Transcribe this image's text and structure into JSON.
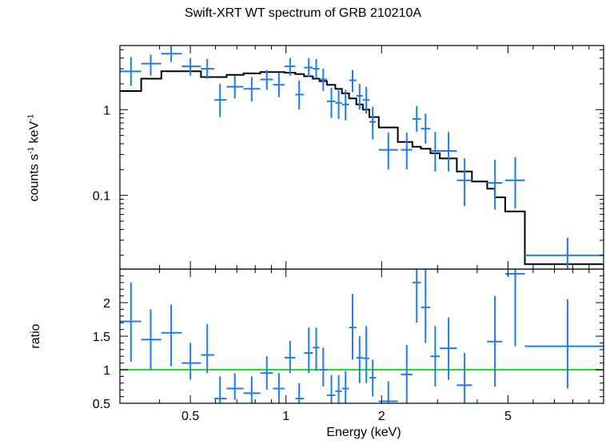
{
  "title": "Swift-XRT WT spectrum of GRB 210210A",
  "xlabel": "Energy (keV)",
  "colors": {
    "data": "#1e7ee6",
    "model": "#000000",
    "unity": "#22dd22",
    "frame": "#000000"
  },
  "chart_data": [
    {
      "type": "scatter",
      "panel": "spectrum",
      "xscale": "log",
      "yscale": "log",
      "xlim": [
        0.3,
        10
      ],
      "ylim": [
        0.0138,
        5.6
      ],
      "ylabel_main": "counts s",
      "ylabel_exp1": "-1",
      "ylabel_mid": " keV",
      "ylabel_exp2": "-1",
      "yticks": [
        {
          "value": 0.1,
          "label": "0.1"
        },
        {
          "value": 1,
          "label": "1"
        }
      ],
      "xticks": [
        {
          "value": 0.5,
          "label": "0.5"
        },
        {
          "value": 1,
          "label": "1"
        },
        {
          "value": 2,
          "label": "2"
        },
        {
          "value": 5,
          "label": "5"
        }
      ],
      "data_points": [
        {
          "x": 0.325,
          "xlo": 0.3,
          "xhi": 0.35,
          "y": 2.8,
          "ylo": 1.9,
          "yhi": 4.1
        },
        {
          "x": 0.375,
          "xlo": 0.35,
          "xhi": 0.405,
          "y": 3.45,
          "ylo": 2.5,
          "yhi": 4.4
        },
        {
          "x": 0.435,
          "xlo": 0.405,
          "xhi": 0.47,
          "y": 4.5,
          "ylo": 3.6,
          "yhi": 5.6
        },
        {
          "x": 0.5,
          "xlo": 0.47,
          "xhi": 0.54,
          "y": 3.2,
          "ylo": 2.5,
          "yhi": 4.0
        },
        {
          "x": 0.565,
          "xlo": 0.54,
          "xhi": 0.595,
          "y": 3.0,
          "ylo": 2.3,
          "yhi": 3.9
        },
        {
          "x": 0.62,
          "xlo": 0.595,
          "xhi": 0.65,
          "y": 1.3,
          "ylo": 0.82,
          "yhi": 2.0
        },
        {
          "x": 0.69,
          "xlo": 0.65,
          "xhi": 0.735,
          "y": 1.85,
          "ylo": 1.35,
          "yhi": 2.5
        },
        {
          "x": 0.78,
          "xlo": 0.735,
          "xhi": 0.83,
          "y": 1.75,
          "ylo": 1.25,
          "yhi": 2.4
        },
        {
          "x": 0.87,
          "xlo": 0.83,
          "xhi": 0.91,
          "y": 2.25,
          "ylo": 1.7,
          "yhi": 2.9
        },
        {
          "x": 0.95,
          "xlo": 0.91,
          "xhi": 0.99,
          "y": 1.95,
          "ylo": 1.4,
          "yhi": 2.7
        },
        {
          "x": 1.03,
          "xlo": 0.99,
          "xhi": 1.07,
          "y": 3.2,
          "ylo": 2.5,
          "yhi": 4.0
        },
        {
          "x": 1.1,
          "xlo": 1.07,
          "xhi": 1.14,
          "y": 1.5,
          "ylo": 1.0,
          "yhi": 2.2
        },
        {
          "x": 1.18,
          "xlo": 1.14,
          "xhi": 1.215,
          "y": 3.1,
          "ylo": 2.4,
          "yhi": 4.0
        },
        {
          "x": 1.245,
          "xlo": 1.215,
          "xhi": 1.275,
          "y": 3.0,
          "ylo": 2.3,
          "yhi": 3.9
        },
        {
          "x": 1.31,
          "xlo": 1.275,
          "xhi": 1.345,
          "y": 2.25,
          "ylo": 1.65,
          "yhi": 3.0
        },
        {
          "x": 1.39,
          "xlo": 1.345,
          "xhi": 1.43,
          "y": 1.25,
          "ylo": 0.8,
          "yhi": 1.8
        },
        {
          "x": 1.465,
          "xlo": 1.43,
          "xhi": 1.5,
          "y": 1.2,
          "ylo": 0.78,
          "yhi": 1.75
        },
        {
          "x": 1.54,
          "xlo": 1.5,
          "xhi": 1.58,
          "y": 1.15,
          "ylo": 0.75,
          "yhi": 1.7
        },
        {
          "x": 1.62,
          "xlo": 1.58,
          "xhi": 1.665,
          "y": 2.2,
          "ylo": 1.6,
          "yhi": 2.9
        },
        {
          "x": 1.705,
          "xlo": 1.665,
          "xhi": 1.745,
          "y": 1.45,
          "ylo": 1.0,
          "yhi": 2.0
        },
        {
          "x": 1.79,
          "xlo": 1.745,
          "xhi": 1.83,
          "y": 1.3,
          "ylo": 0.9,
          "yhi": 1.85
        },
        {
          "x": 1.875,
          "xlo": 1.83,
          "xhi": 1.92,
          "y": 0.72,
          "ylo": 0.45,
          "yhi": 1.08
        },
        {
          "x": 2.1,
          "xlo": 1.96,
          "xhi": 2.25,
          "y": 0.34,
          "ylo": 0.2,
          "yhi": 0.54
        },
        {
          "x": 2.4,
          "xlo": 2.3,
          "xhi": 2.5,
          "y": 0.34,
          "ylo": 0.2,
          "yhi": 0.54
        },
        {
          "x": 2.58,
          "xlo": 2.5,
          "xhi": 2.66,
          "y": 0.78,
          "ylo": 0.55,
          "yhi": 1.1
        },
        {
          "x": 2.75,
          "xlo": 2.66,
          "xhi": 2.85,
          "y": 0.6,
          "ylo": 0.4,
          "yhi": 0.9
        },
        {
          "x": 2.95,
          "xlo": 2.85,
          "xhi": 3.05,
          "y": 0.33,
          "ylo": 0.19,
          "yhi": 0.55
        },
        {
          "x": 3.25,
          "xlo": 3.05,
          "xhi": 3.45,
          "y": 0.33,
          "ylo": 0.19,
          "yhi": 0.55
        },
        {
          "x": 3.65,
          "xlo": 3.45,
          "xhi": 3.85,
          "y": 0.15,
          "ylo": 0.075,
          "yhi": 0.27
        },
        {
          "x": 4.55,
          "xlo": 4.3,
          "xhi": 4.8,
          "y": 0.14,
          "ylo": 0.068,
          "yhi": 0.26
        },
        {
          "x": 5.27,
          "xlo": 4.9,
          "xhi": 5.65,
          "y": 0.15,
          "ylo": 0.07,
          "yhi": 0.28
        },
        {
          "x": 7.7,
          "xlo": 5.65,
          "xhi": 10.0,
          "y": 0.02,
          "ylo": 0.0138,
          "yhi": 0.032
        }
      ],
      "model_steps": [
        {
          "xlo": 0.3,
          "xhi": 0.35,
          "y": 1.65
        },
        {
          "xlo": 0.35,
          "xhi": 0.405,
          "y": 2.3
        },
        {
          "xlo": 0.405,
          "xhi": 0.54,
          "y": 2.8
        },
        {
          "xlo": 0.54,
          "xhi": 0.65,
          "y": 2.4
        },
        {
          "xlo": 0.65,
          "xhi": 0.735,
          "y": 2.55
        },
        {
          "xlo": 0.735,
          "xhi": 0.83,
          "y": 2.65
        },
        {
          "xlo": 0.83,
          "xhi": 0.99,
          "y": 2.75
        },
        {
          "xlo": 0.99,
          "xhi": 1.07,
          "y": 2.7
        },
        {
          "xlo": 1.07,
          "xhi": 1.14,
          "y": 2.6
        },
        {
          "xlo": 1.14,
          "xhi": 1.215,
          "y": 2.45
        },
        {
          "xlo": 1.215,
          "xhi": 1.275,
          "y": 2.3
        },
        {
          "xlo": 1.275,
          "xhi": 1.345,
          "y": 2.15
        },
        {
          "xlo": 1.345,
          "xhi": 1.43,
          "y": 1.95
        },
        {
          "xlo": 1.43,
          "xhi": 1.5,
          "y": 1.75
        },
        {
          "xlo": 1.5,
          "xhi": 1.58,
          "y": 1.55
        },
        {
          "xlo": 1.58,
          "xhi": 1.665,
          "y": 1.35
        },
        {
          "xlo": 1.665,
          "xhi": 1.745,
          "y": 1.15
        },
        {
          "xlo": 1.745,
          "xhi": 1.83,
          "y": 1.0
        },
        {
          "xlo": 1.83,
          "xhi": 1.96,
          "y": 0.82
        },
        {
          "xlo": 1.96,
          "xhi": 2.25,
          "y": 0.62
        },
        {
          "xlo": 2.25,
          "xhi": 2.5,
          "y": 0.42
        },
        {
          "xlo": 2.5,
          "xhi": 2.66,
          "y": 0.37
        },
        {
          "xlo": 2.66,
          "xhi": 2.85,
          "y": 0.35
        },
        {
          "xlo": 2.85,
          "xhi": 3.05,
          "y": 0.31
        },
        {
          "xlo": 3.05,
          "xhi": 3.45,
          "y": 0.27
        },
        {
          "xlo": 3.45,
          "xhi": 3.85,
          "y": 0.19
        },
        {
          "xlo": 3.85,
          "xhi": 4.3,
          "y": 0.145
        },
        {
          "xlo": 4.3,
          "xhi": 4.55,
          "y": 0.12
        },
        {
          "xlo": 4.55,
          "xhi": 4.9,
          "y": 0.095
        },
        {
          "xlo": 4.9,
          "xhi": 5.65,
          "y": 0.065
        },
        {
          "xlo": 5.65,
          "xhi": 10.0,
          "y": 0.0158
        }
      ]
    },
    {
      "type": "scatter",
      "panel": "ratio",
      "xscale": "log",
      "yscale": "linear",
      "xlim": [
        0.3,
        10
      ],
      "ylim": [
        0.5,
        2.5
      ],
      "ylabel": "ratio",
      "yticks": [
        {
          "value": 0.5,
          "label": "0.5"
        },
        {
          "value": 1,
          "label": "1"
        },
        {
          "value": 1.5,
          "label": "1.5"
        },
        {
          "value": 2,
          "label": "2"
        }
      ],
      "xticks": [
        {
          "value": 0.5,
          "label": "0.5"
        },
        {
          "value": 1,
          "label": "1"
        },
        {
          "value": 2,
          "label": "2"
        },
        {
          "value": 5,
          "label": "5"
        }
      ],
      "reference_line": 1.0,
      "data_points": [
        {
          "x": 0.325,
          "xlo": 0.3,
          "xhi": 0.35,
          "y": 1.72,
          "ylo": 1.12,
          "yhi": 2.3
        },
        {
          "x": 0.375,
          "xlo": 0.35,
          "xhi": 0.405,
          "y": 1.45,
          "ylo": 1.0,
          "yhi": 1.9
        },
        {
          "x": 0.435,
          "xlo": 0.405,
          "xhi": 0.47,
          "y": 1.55,
          "ylo": 1.05,
          "yhi": 1.97
        },
        {
          "x": 0.5,
          "xlo": 0.47,
          "xhi": 0.54,
          "y": 1.1,
          "ylo": 0.85,
          "yhi": 1.4
        },
        {
          "x": 0.565,
          "xlo": 0.54,
          "xhi": 0.595,
          "y": 1.22,
          "ylo": 0.95,
          "yhi": 1.68
        },
        {
          "x": 0.62,
          "xlo": 0.595,
          "xhi": 0.65,
          "y": 0.57,
          "ylo": 0.5,
          "yhi": 0.9
        },
        {
          "x": 0.69,
          "xlo": 0.65,
          "xhi": 0.735,
          "y": 0.72,
          "ylo": 0.55,
          "yhi": 0.95
        },
        {
          "x": 0.78,
          "xlo": 0.735,
          "xhi": 0.83,
          "y": 0.65,
          "ylo": 0.5,
          "yhi": 0.9
        },
        {
          "x": 0.87,
          "xlo": 0.83,
          "xhi": 0.91,
          "y": 0.95,
          "ylo": 0.7,
          "yhi": 1.2
        },
        {
          "x": 0.95,
          "xlo": 0.91,
          "xhi": 0.99,
          "y": 0.72,
          "ylo": 0.5,
          "yhi": 0.95
        },
        {
          "x": 1.03,
          "xlo": 0.99,
          "xhi": 1.07,
          "y": 1.18,
          "ylo": 0.95,
          "yhi": 1.43
        },
        {
          "x": 1.1,
          "xlo": 1.07,
          "xhi": 1.14,
          "y": 0.57,
          "ylo": 0.5,
          "yhi": 0.8
        },
        {
          "x": 1.18,
          "xlo": 1.14,
          "xhi": 1.215,
          "y": 1.25,
          "ylo": 0.95,
          "yhi": 1.63
        },
        {
          "x": 1.245,
          "xlo": 1.215,
          "xhi": 1.275,
          "y": 1.33,
          "ylo": 0.98,
          "yhi": 1.63
        },
        {
          "x": 1.31,
          "xlo": 1.275,
          "xhi": 1.345,
          "y": 1.0,
          "ylo": 0.75,
          "yhi": 1.33
        },
        {
          "x": 1.39,
          "xlo": 1.345,
          "xhi": 1.43,
          "y": 0.62,
          "ylo": 0.5,
          "yhi": 0.92
        },
        {
          "x": 1.465,
          "xlo": 1.43,
          "xhi": 1.5,
          "y": 0.68,
          "ylo": 0.5,
          "yhi": 0.92
        },
        {
          "x": 1.54,
          "xlo": 1.5,
          "xhi": 1.58,
          "y": 0.72,
          "ylo": 0.5,
          "yhi": 0.98
        },
        {
          "x": 1.62,
          "xlo": 1.58,
          "xhi": 1.665,
          "y": 1.63,
          "ylo": 1.15,
          "yhi": 2.13
        },
        {
          "x": 1.705,
          "xlo": 1.665,
          "xhi": 1.745,
          "y": 1.18,
          "ylo": 0.8,
          "yhi": 1.5
        },
        {
          "x": 1.79,
          "xlo": 1.745,
          "xhi": 1.83,
          "y": 1.17,
          "ylo": 0.8,
          "yhi": 1.65
        },
        {
          "x": 1.875,
          "xlo": 1.83,
          "xhi": 1.92,
          "y": 0.88,
          "ylo": 0.6,
          "yhi": 1.15
        },
        {
          "x": 2.1,
          "xlo": 1.96,
          "xhi": 2.25,
          "y": 0.53,
          "ylo": 0.5,
          "yhi": 0.83
        },
        {
          "x": 2.4,
          "xlo": 2.3,
          "xhi": 2.5,
          "y": 0.93,
          "ylo": 0.5,
          "yhi": 1.37
        },
        {
          "x": 2.58,
          "xlo": 2.5,
          "xhi": 2.66,
          "y": 2.3,
          "ylo": 1.7,
          "yhi": 2.5
        },
        {
          "x": 2.75,
          "xlo": 2.66,
          "xhi": 2.85,
          "y": 1.93,
          "ylo": 1.4,
          "yhi": 2.5
        },
        {
          "x": 2.95,
          "xlo": 2.85,
          "xhi": 3.05,
          "y": 1.2,
          "ylo": 0.75,
          "yhi": 1.65
        },
        {
          "x": 3.25,
          "xlo": 3.05,
          "xhi": 3.45,
          "y": 1.32,
          "ylo": 0.85,
          "yhi": 1.78
        },
        {
          "x": 3.65,
          "xlo": 3.45,
          "xhi": 3.85,
          "y": 0.77,
          "ylo": 0.5,
          "yhi": 1.25
        },
        {
          "x": 4.55,
          "xlo": 4.3,
          "xhi": 4.8,
          "y": 1.42,
          "ylo": 0.75,
          "yhi": 2.1
        },
        {
          "x": 5.27,
          "xlo": 4.9,
          "xhi": 5.65,
          "y": 2.43,
          "ylo": 1.35,
          "yhi": 2.5
        },
        {
          "x": 7.7,
          "xlo": 5.65,
          "xhi": 10.0,
          "y": 1.35,
          "ylo": 0.72,
          "yhi": 2.05
        }
      ]
    }
  ]
}
